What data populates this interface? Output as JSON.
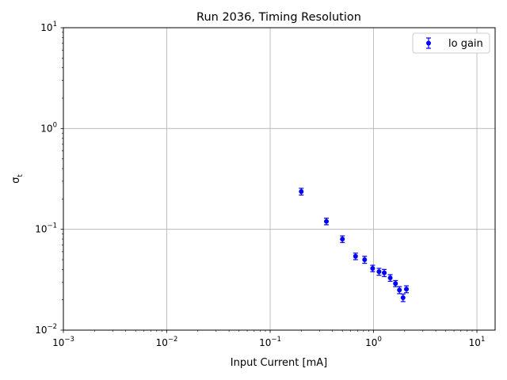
{
  "chart_data": {
    "type": "scatter",
    "title": "Run 2036, Timing Resolution",
    "xlabel": "Input Current [mA]",
    "ylabel_base": "σ",
    "ylabel_sub": "t",
    "xscale": "log",
    "yscale": "log",
    "xlim": [
      0.001,
      15
    ],
    "ylim": [
      0.01,
      10
    ],
    "x_ticks": [
      {
        "value": 0.001,
        "base": "10",
        "exp": "−3"
      },
      {
        "value": 0.01,
        "base": "10",
        "exp": "−2"
      },
      {
        "value": 0.1,
        "base": "10",
        "exp": "−1"
      },
      {
        "value": 1,
        "base": "10",
        "exp": "0"
      },
      {
        "value": 10,
        "base": "10",
        "exp": "1"
      }
    ],
    "y_ticks": [
      {
        "value": 0.01,
        "base": "10",
        "exp": "−2"
      },
      {
        "value": 0.1,
        "base": "10",
        "exp": "−1"
      },
      {
        "value": 1,
        "base": "10",
        "exp": "0"
      },
      {
        "value": 10,
        "base": "10",
        "exp": "1"
      }
    ],
    "grid": true,
    "legend_position": "top-right",
    "series": [
      {
        "name": "lo gain",
        "color": "#0000ff",
        "marker": "circle",
        "error_bars": true,
        "points": [
          {
            "x": 0.2,
            "y": 0.237,
            "err": 0.018
          },
          {
            "x": 0.35,
            "y": 0.12,
            "err": 0.009
          },
          {
            "x": 0.5,
            "y": 0.08,
            "err": 0.006
          },
          {
            "x": 0.67,
            "y": 0.054,
            "err": 0.004
          },
          {
            "x": 0.82,
            "y": 0.05,
            "err": 0.004
          },
          {
            "x": 0.98,
            "y": 0.041,
            "err": 0.003
          },
          {
            "x": 1.13,
            "y": 0.038,
            "err": 0.003
          },
          {
            "x": 1.27,
            "y": 0.037,
            "err": 0.003
          },
          {
            "x": 1.45,
            "y": 0.033,
            "err": 0.0025
          },
          {
            "x": 1.63,
            "y": 0.029,
            "err": 0.002
          },
          {
            "x": 1.78,
            "y": 0.025,
            "err": 0.002
          },
          {
            "x": 1.93,
            "y": 0.021,
            "err": 0.0018
          },
          {
            "x": 2.08,
            "y": 0.0255,
            "err": 0.002
          }
        ]
      }
    ]
  }
}
